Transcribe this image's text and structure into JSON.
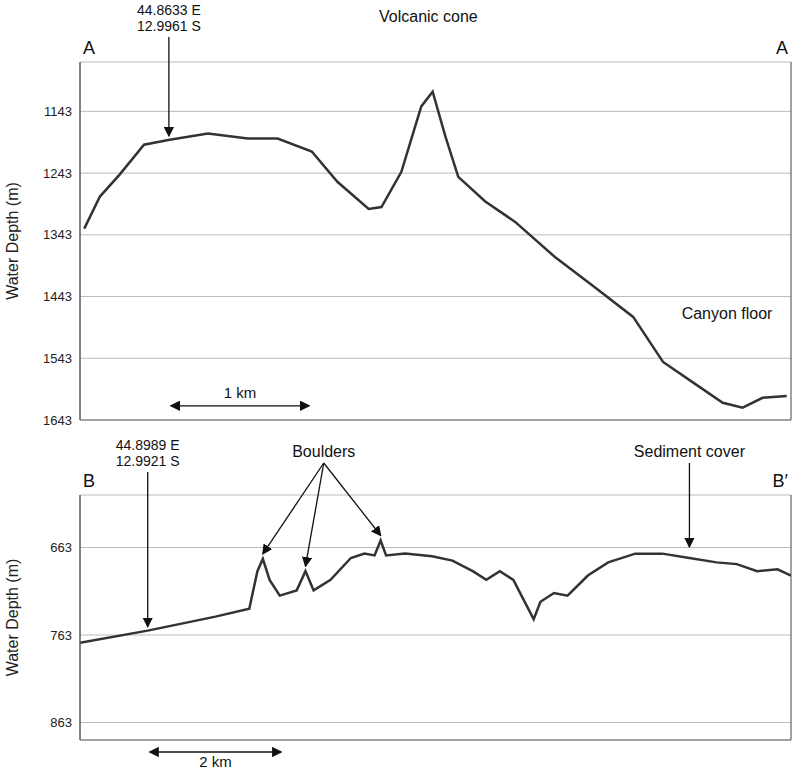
{
  "chart_data": [
    {
      "type": "line",
      "section_start": "A",
      "section_end": "A",
      "y_label": "Water Depth (m)",
      "x": [
        0.03,
        0.14,
        0.28,
        0.45,
        0.63,
        0.9,
        1.18,
        1.39,
        1.63,
        1.81,
        2.03,
        2.12,
        2.26,
        2.4,
        2.48,
        2.57,
        2.66,
        2.85,
        3.06,
        3.34,
        3.62,
        3.89,
        4.1,
        4.31,
        4.52,
        4.66,
        4.8,
        4.97
      ],
      "values": [
        1333,
        1281,
        1245,
        1197,
        1189,
        1179,
        1187,
        1187,
        1208,
        1257,
        1301,
        1298,
        1241,
        1135,
        1111,
        1184,
        1249,
        1289,
        1322,
        1379,
        1428,
        1476,
        1549,
        1582,
        1615,
        1623,
        1607,
        1604
      ],
      "color": "#333333",
      "xlim": [
        0,
        5
      ],
      "xticks": [
        0.625,
        1.625,
        2.625,
        3.625,
        4.625
      ],
      "ylim": [
        1063,
        1643
      ],
      "yticks": [
        1143,
        1243,
        1343,
        1443,
        1543,
        1643
      ],
      "grid": true,
      "tick_labels": "y",
      "location": {
        "lines": [
          "44.8633 E",
          "12.9961 S"
        ],
        "x": 0.625
      },
      "annotations": [
        {
          "text": "Volcanic cone",
          "x": 2.45
        },
        {
          "text": "Canyon floor",
          "x": 4.55,
          "y": 1480
        }
      ],
      "scale_bar": {
        "label": "1 km",
        "from": 0.625,
        "to": 1.625,
        "y": 1620
      }
    },
    {
      "type": "line",
      "section_start": "B",
      "section_end": "B′",
      "y_label": "Water Depth (m)",
      "x": [
        0,
        1,
        2,
        2.5,
        2.62,
        2.7,
        2.8,
        2.95,
        3.2,
        3.33,
        3.45,
        3.7,
        4.0,
        4.2,
        4.35,
        4.44,
        4.52,
        4.8,
        5.2,
        5.5,
        5.8,
        6.0,
        6.2,
        6.4,
        6.6,
        6.7,
        6.8,
        7.0,
        7.2,
        7.5,
        7.8,
        8.2,
        8.6,
        9.0,
        9.4,
        9.7,
        10.0,
        10.3,
        10.5
      ],
      "values": [
        772,
        758,
        742,
        733,
        690,
        676,
        700,
        718,
        712,
        690,
        712,
        700,
        675,
        670,
        672,
        655,
        672,
        670,
        673,
        678,
        690,
        700,
        690,
        700,
        730,
        745,
        725,
        715,
        718,
        695,
        680,
        670,
        670,
        675,
        680,
        682,
        690,
        688,
        695
      ],
      "color": "#333333",
      "xlim": [
        0,
        10.5
      ],
      "xticks": [
        1,
        3,
        5,
        7,
        9
      ],
      "ylim": [
        603,
        883
      ],
      "yticks": [
        663,
        763,
        863
      ],
      "grid": true,
      "tick_labels": "y",
      "location": {
        "lines": [
          "44.8989 E",
          "12.9921 S"
        ],
        "x": 1
      },
      "annotations": [
        {
          "text": "Boulders",
          "x": 3.6,
          "targets": [
            {
              "x": 2.7,
              "y": 676
            },
            {
              "x": 3.33,
              "y": 690
            },
            {
              "x": 4.44,
              "y": 655
            }
          ]
        },
        {
          "text": "Sediment cover",
          "x": 9.0,
          "targets": [
            {
              "x": 9.0,
              "y": 668
            }
          ]
        }
      ],
      "scale_bar": {
        "label": "2 km",
        "from": 1,
        "to": 3
      }
    }
  ]
}
